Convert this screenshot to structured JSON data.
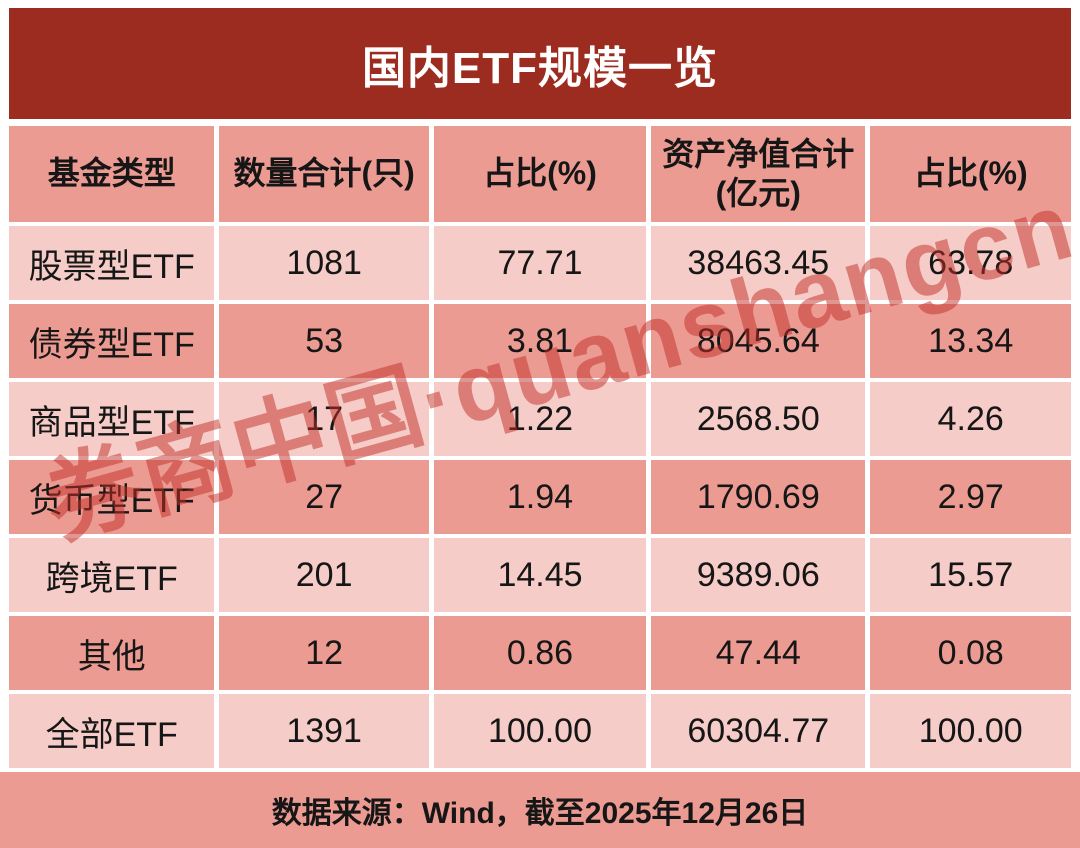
{
  "title": "国内ETF规模一览",
  "table": {
    "headers": [
      "基金类型",
      "数量合计(只)",
      "占比(%)",
      "资产净值合计",
      "占比(%)"
    ],
    "nav_unit": "(亿元)",
    "rows": [
      {
        "type": "股票型ETF",
        "count": "1081",
        "count_pct": "77.71",
        "nav": "38463.45",
        "nav_pct": "63.78"
      },
      {
        "type": "债券型ETF",
        "count": "53",
        "count_pct": "3.81",
        "nav": "8045.64",
        "nav_pct": "13.34"
      },
      {
        "type": "商品型ETF",
        "count": "17",
        "count_pct": "1.22",
        "nav": "2568.50",
        "nav_pct": "4.26"
      },
      {
        "type": "货币型ETF",
        "count": "27",
        "count_pct": "1.94",
        "nav": "1790.69",
        "nav_pct": "2.97"
      },
      {
        "type": "跨境ETF",
        "count": "201",
        "count_pct": "14.45",
        "nav": "9389.06",
        "nav_pct": "15.57"
      },
      {
        "type": "其他",
        "count": "12",
        "count_pct": "0.86",
        "nav": "47.44",
        "nav_pct": "0.08"
      },
      {
        "type": "全部ETF",
        "count": "1391",
        "count_pct": "100.00",
        "nav": "60304.77",
        "nav_pct": "100.00"
      }
    ]
  },
  "footer": {
    "source": "数据来源：Wind，截至2025年12月26日"
  },
  "watermark": {
    "text": "券商中国·quanshangcn"
  },
  "colors": {
    "title_bg": "#9C2C1F",
    "title_text": "#FFFFFF",
    "row_dark": "#EC9B92",
    "row_light": "#F5CCC7",
    "cell_text": "#161616",
    "watermark_red": "#C12E26"
  },
  "chart_data": {
    "type": "table",
    "title": "国内ETF规模一览",
    "columns": [
      "基金类型",
      "数量合计(只)",
      "占比(%)",
      "资产净值合计(亿元)",
      "占比(%)"
    ],
    "rows": [
      [
        "股票型ETF",
        1081,
        77.71,
        38463.45,
        63.78
      ],
      [
        "债券型ETF",
        53,
        3.81,
        8045.64,
        13.34
      ],
      [
        "商品型ETF",
        17,
        1.22,
        2568.5,
        4.26
      ],
      [
        "货币型ETF",
        27,
        1.94,
        1790.69,
        2.97
      ],
      [
        "跨境ETF",
        201,
        14.45,
        9389.06,
        15.57
      ],
      [
        "其他",
        12,
        0.86,
        47.44,
        0.08
      ],
      [
        "全部ETF",
        1391,
        100.0,
        60304.77,
        100.0
      ]
    ],
    "source": "数据来源：Wind，截至2025年12月26日"
  }
}
